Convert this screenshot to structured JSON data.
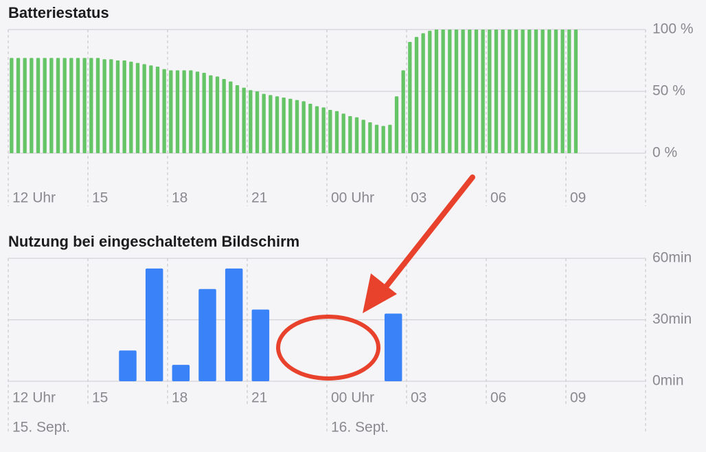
{
  "chart_data": [
    {
      "type": "bar",
      "title": "Batteriestatus",
      "color": "#65c466",
      "categories": [
        "12 Uhr",
        null,
        null,
        null,
        null,
        null,
        null,
        null,
        null,
        null,
        null,
        null,
        "15",
        null,
        null,
        null,
        null,
        null,
        null,
        null,
        null,
        null,
        null,
        null,
        "18",
        null,
        null,
        null,
        null,
        null,
        null,
        null,
        null,
        null,
        null,
        null,
        "21",
        null,
        null,
        null,
        null,
        null,
        null,
        null,
        null,
        null,
        null,
        null,
        "00 Uhr",
        null,
        null,
        null,
        null,
        null,
        null,
        null,
        null,
        null,
        null,
        null,
        "03",
        null,
        null,
        null,
        null,
        null,
        null,
        null,
        null,
        null,
        null,
        null,
        "06",
        null,
        null,
        null,
        null,
        null,
        null,
        null,
        null,
        null,
        null,
        null,
        "09",
        null,
        null,
        null,
        null,
        null,
        null,
        null,
        null,
        null,
        null,
        null
      ],
      "values": [
        77,
        77,
        77,
        77,
        77,
        77,
        77,
        77,
        77,
        77,
        77,
        77,
        77,
        77,
        76,
        76,
        75,
        75,
        74,
        73,
        72,
        71,
        70,
        68,
        67,
        67,
        67,
        67,
        66,
        65,
        63,
        62,
        60,
        58,
        55,
        53,
        51,
        50,
        48,
        47,
        46,
        45,
        44,
        43,
        42,
        40,
        38,
        37,
        35,
        34,
        32,
        30,
        29,
        27,
        25,
        23,
        22,
        23,
        46,
        67,
        90,
        94,
        97,
        99,
        100,
        100,
        100,
        100,
        100,
        100,
        100,
        100,
        100,
        100,
        100,
        100,
        100,
        100,
        100,
        100,
        100,
        100,
        100,
        100,
        100,
        100,
        null,
        null,
        null,
        null,
        null,
        null,
        null,
        null,
        null,
        null
      ],
      "ylim": [
        0,
        100
      ],
      "yticks": [
        {
          "value": 0,
          "label": "0 %"
        },
        {
          "value": 50,
          "label": "50 %"
        },
        {
          "value": 100,
          "label": "100 %"
        }
      ],
      "grid": true
    },
    {
      "type": "bar",
      "title": "Nutzung bei eingeschaltetem Bildschirm",
      "color": "#3a82f7",
      "categories": [
        "12 Uhr",
        null,
        null,
        "15",
        null,
        null,
        "18",
        null,
        null,
        "21",
        null,
        null,
        "00 Uhr",
        null,
        null,
        "03",
        null,
        null,
        "06",
        null,
        null,
        "09",
        null,
        null
      ],
      "date_categories": [
        "15. Sept.",
        null,
        null,
        null,
        null,
        null,
        null,
        null,
        null,
        null,
        null,
        null,
        "16. Sept.",
        null,
        null,
        null,
        null,
        null,
        null,
        null,
        null,
        null,
        null,
        null
      ],
      "values": [
        null,
        null,
        null,
        null,
        15,
        55,
        8,
        45,
        55,
        35,
        null,
        null,
        null,
        null,
        33,
        null,
        null,
        null,
        null,
        null,
        null,
        null,
        null,
        null
      ],
      "ylim": [
        0,
        60
      ],
      "yticks": [
        {
          "value": 0,
          "label": "0min"
        },
        {
          "value": 30,
          "label": "30min"
        },
        {
          "value": 60,
          "label": "60min"
        }
      ],
      "grid": true
    }
  ]
}
